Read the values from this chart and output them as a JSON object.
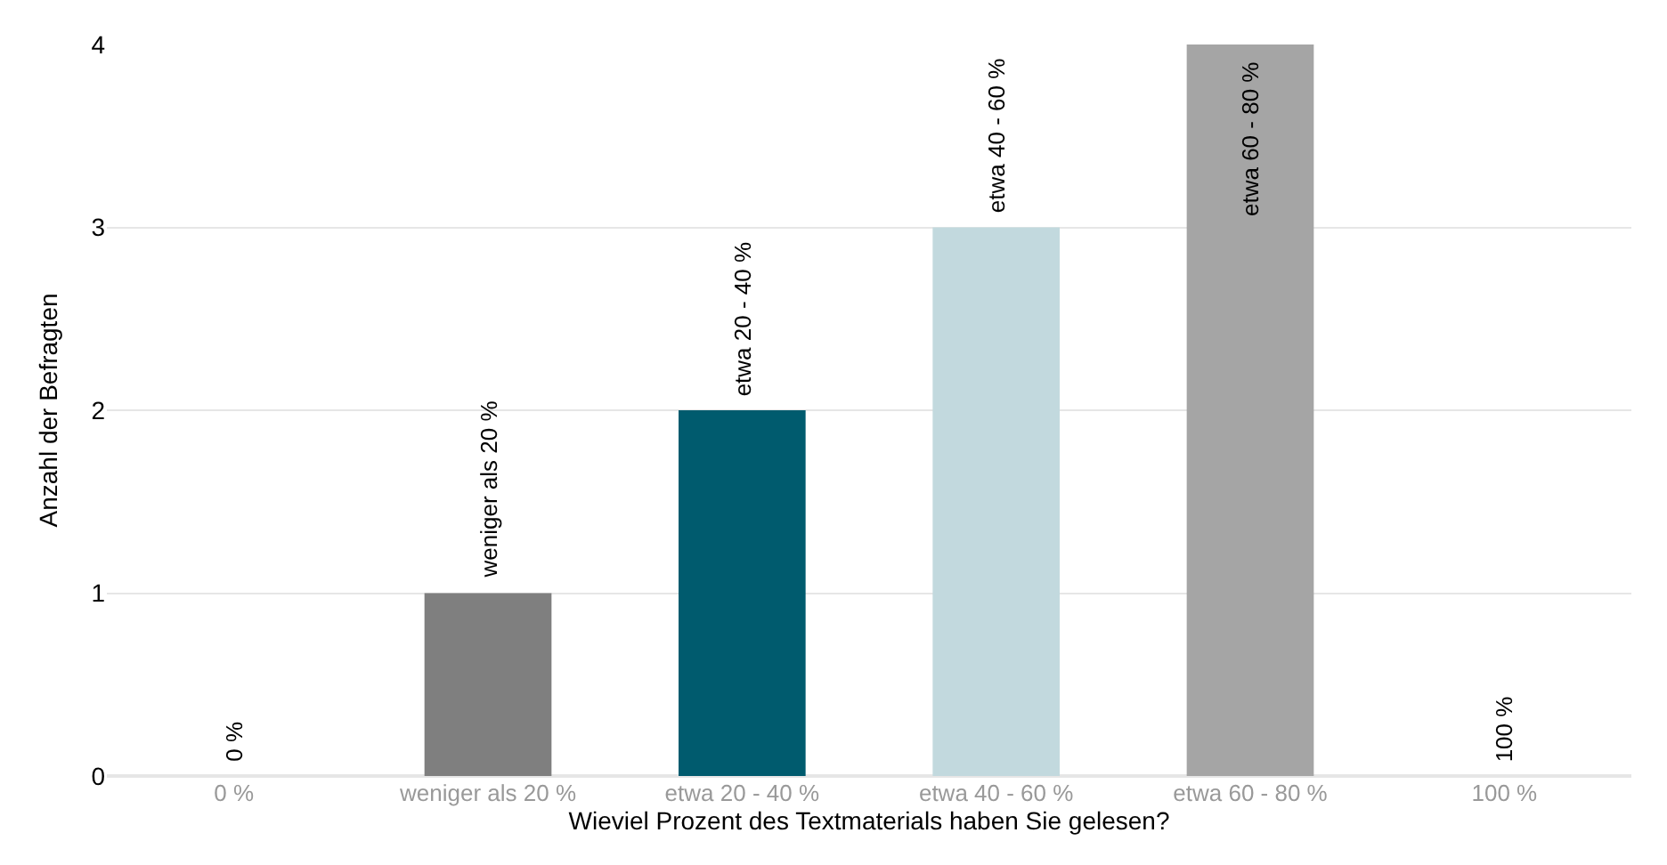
{
  "chart_data": {
    "type": "bar",
    "xlabel": "Wieviel Prozent des Textmaterials haben Sie gelesen?",
    "ylabel": "Anzahl der Befragten",
    "categories": [
      "0 %",
      "weniger als 20 %",
      "etwa 20 - 40 %",
      "etwa 40 - 60 %",
      "etwa 60 - 80 %",
      "100 %"
    ],
    "values": [
      0,
      1,
      2,
      3,
      4,
      0
    ],
    "colors": [
      "#7f7f7f",
      "#7f7f7f",
      "#005b6e",
      "#c2d9de",
      "#a5a5a5",
      "#7f7f7f"
    ],
    "annotations": [
      {
        "text": "0 %",
        "x": "0 %",
        "y": 0
      },
      {
        "text": "weniger als 20 %",
        "x": "weniger als 20 %",
        "y": 1
      },
      {
        "text": "etwa 20 - 40 %",
        "x": "etwa 20 - 40 %",
        "y": 2
      },
      {
        "text": "etwa 40 - 60 %",
        "x": "etwa 40 - 60 %",
        "y": 3
      },
      {
        "text": "etwa 60 - 80 %",
        "x": "etwa 60 - 80 %",
        "y": 4
      },
      {
        "text": "100 %",
        "x": "100 %",
        "y": 0
      }
    ],
    "ylim": [
      0,
      4
    ],
    "yticks": [
      0,
      1,
      2,
      3,
      4
    ],
    "grid": "y",
    "legend": false
  }
}
